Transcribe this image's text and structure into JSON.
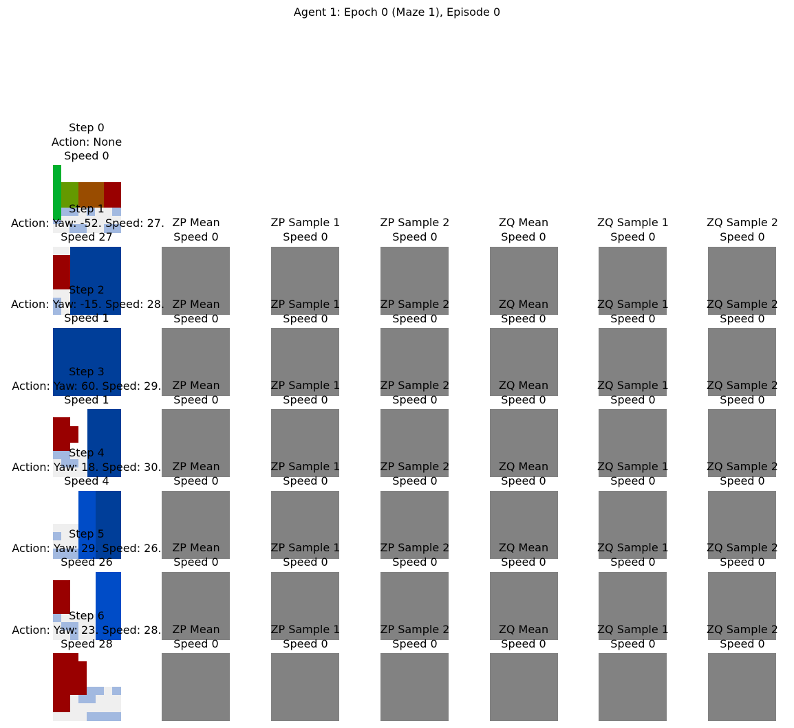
{
  "title": "Agent 1: Epoch 0 (Maze 1), Episode 0",
  "colors": {
    "latent_gray": "#828282",
    "wall_red": "#990000",
    "blue": "#003e99",
    "bright_blue": "#004cc7",
    "light_blue": "#a2b9e0",
    "floor_white": "#efefef",
    "green_bar": "#00b02d",
    "olive": "#649900",
    "orange_brown": "#994c00"
  },
  "columns": [
    "ZP Mean",
    "ZP Sample 1",
    "ZP Sample 2",
    "ZQ Mean",
    "ZQ Sample 1",
    "ZQ Sample 2"
  ],
  "rows": [
    {
      "step": "Step 0",
      "action": "Action: None",
      "speed": "Speed 0",
      "latent_speed": ""
    },
    {
      "step": "Step 1",
      "action": "Action: Yaw: -52. Speed: 27.",
      "speed": "Speed 27",
      "latent_speed": "Speed 0"
    },
    {
      "step": "Step 2",
      "action": "Action: Yaw: -15. Speed: 28.",
      "speed": "Speed 1",
      "latent_speed": "Speed 0"
    },
    {
      "step": "Step 3",
      "action": "Action: Yaw: 60. Speed: 29.",
      "speed": "Speed 1",
      "latent_speed": "Speed 0"
    },
    {
      "step": "Step 4",
      "action": "Action: Yaw: 18. Speed: 30.",
      "speed": "Speed 4",
      "latent_speed": "Speed 0"
    },
    {
      "step": "Step 5",
      "action": "Action: Yaw: 29. Speed: 26.",
      "speed": "Speed 26",
      "latent_speed": "Speed 0"
    },
    {
      "step": "Step 6",
      "action": "Action: Yaw: 23. Speed: 28.",
      "speed": "Speed 28",
      "latent_speed": "Speed 0"
    }
  ]
}
